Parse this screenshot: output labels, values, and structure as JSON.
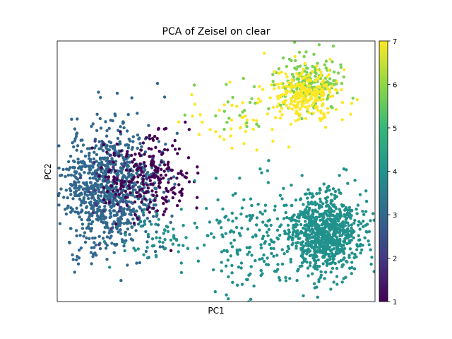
{
  "chart_data": {
    "type": "scatter",
    "title": "PCA of Zeisel on clear",
    "xlabel": "PC1",
    "ylabel": "PC2",
    "xlim": [
      0,
      1
    ],
    "ylim": [
      0,
      1
    ],
    "grid": false,
    "legend": "none",
    "colorbar": {
      "min": 1,
      "max": 7,
      "ticks": [
        "1",
        "2",
        "3",
        "4",
        "5",
        "6",
        "7"
      ],
      "colormap": "viridis"
    },
    "clusters": [
      {
        "value": 3,
        "color": "#31688e",
        "count": 950,
        "center": [
          0.16,
          0.44
        ],
        "spread": [
          0.075,
          0.115
        ],
        "seed": 11
      },
      {
        "value": 2,
        "color": "#443983",
        "count": 40,
        "center": [
          0.16,
          0.44
        ],
        "spread": [
          0.06,
          0.08
        ],
        "seed": 13
      },
      {
        "value": 1,
        "color": "#440154",
        "count": 240,
        "center": [
          0.28,
          0.48
        ],
        "spread": [
          0.07,
          0.09
        ],
        "seed": 17
      },
      {
        "value": 4,
        "color": "#21918c",
        "count": 780,
        "center": [
          0.84,
          0.26
        ],
        "spread": [
          0.055,
          0.075
        ],
        "seed": 23
      },
      {
        "value": 4,
        "color": "#21918c",
        "count": 230,
        "center": [
          0.66,
          0.25
        ],
        "spread": [
          0.12,
          0.1
        ],
        "seed": 29
      },
      {
        "value": 4,
        "color": "#21918c",
        "count": 60,
        "center": [
          0.32,
          0.25
        ],
        "spread": [
          0.06,
          0.05
        ],
        "seed": 31
      },
      {
        "value": 6,
        "color": "#7ad151",
        "count": 200,
        "center": [
          0.8,
          0.84
        ],
        "spread": [
          0.045,
          0.05
        ],
        "seed": 37
      },
      {
        "value": 7,
        "color": "#fde725",
        "count": 260,
        "center": [
          0.78,
          0.8
        ],
        "spread": [
          0.05,
          0.055
        ],
        "seed": 41
      },
      {
        "value": 7,
        "color": "#fde725",
        "count": 40,
        "center": [
          0.55,
          0.68
        ],
        "spread": [
          0.08,
          0.07
        ],
        "seed": 43
      },
      {
        "value": 6,
        "color": "#7ad151",
        "count": 25,
        "center": [
          0.58,
          0.74
        ],
        "spread": [
          0.06,
          0.05
        ],
        "seed": 47
      }
    ]
  }
}
